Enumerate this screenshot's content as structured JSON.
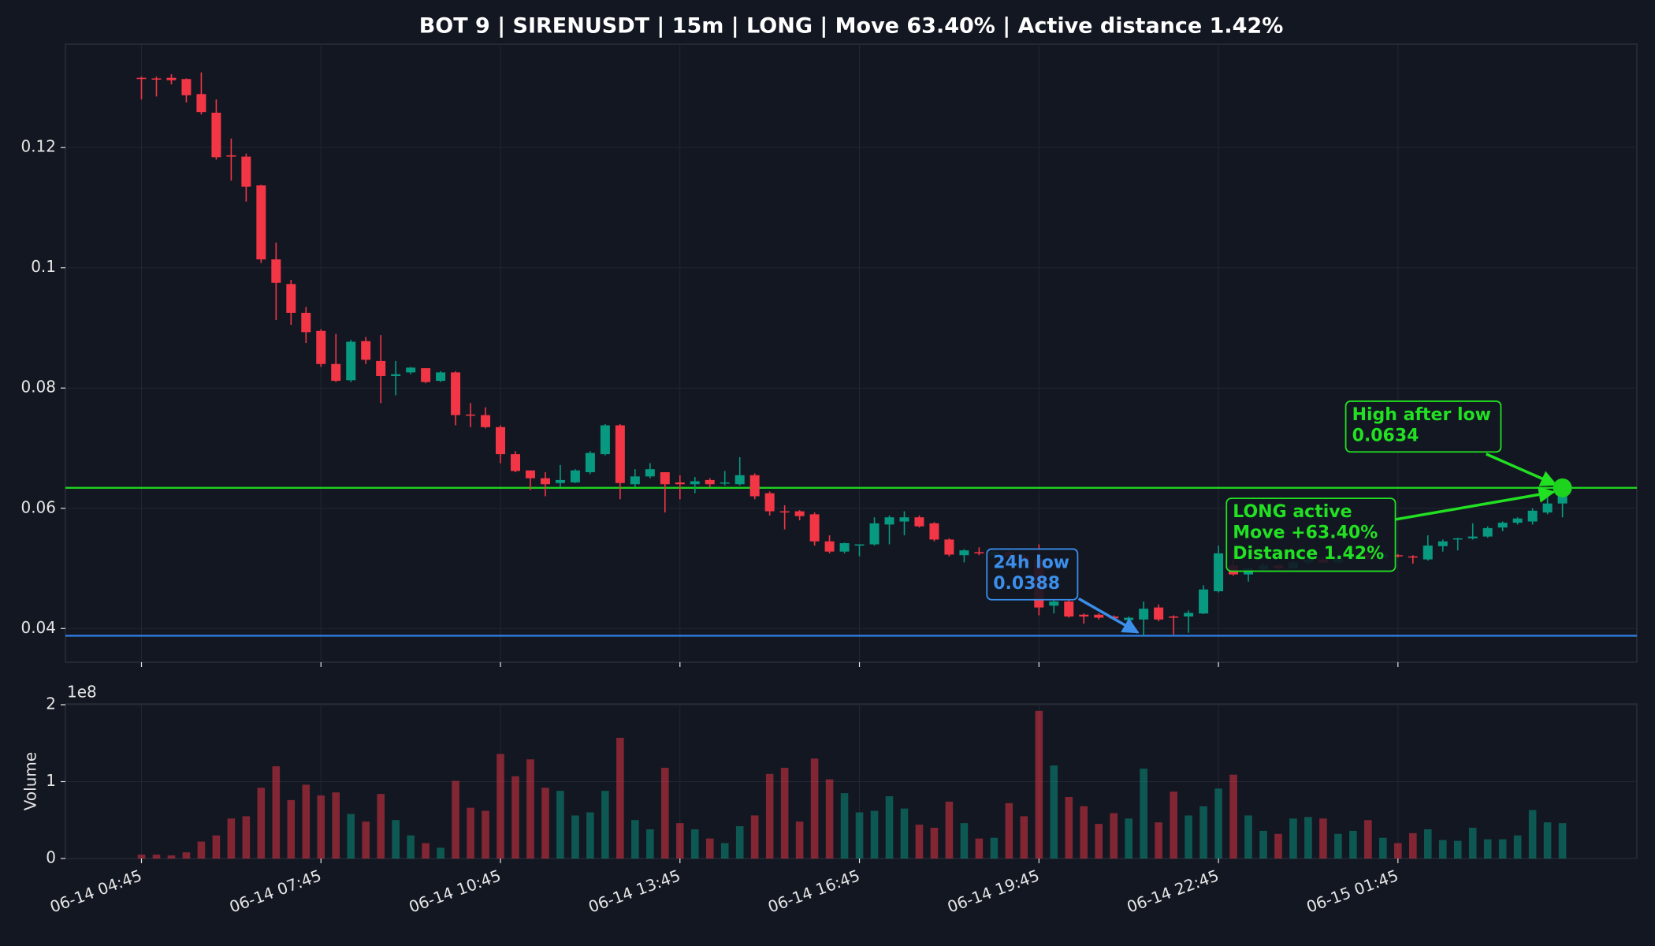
{
  "chart_data": {
    "type": "candlestick",
    "title": "BOT 9 | SIRENUSDT | 15m | LONG | Move 63.40% | Active distance 1.42%",
    "categories": [
      "06-14 04:45",
      null,
      null,
      null,
      null,
      null,
      null,
      null,
      null,
      null,
      null,
      null,
      "06-14 07:45",
      null,
      null,
      null,
      null,
      null,
      null,
      null,
      null,
      null,
      null,
      null,
      "06-14 10:45",
      null,
      null,
      null,
      null,
      null,
      null,
      null,
      null,
      null,
      null,
      null,
      "06-14 13:45",
      null,
      null,
      null,
      null,
      null,
      null,
      null,
      null,
      null,
      null,
      null,
      "06-14 16:45",
      null,
      null,
      null,
      null,
      null,
      null,
      null,
      null,
      null,
      null,
      null,
      "06-14 19:45",
      null,
      null,
      null,
      null,
      null,
      null,
      null,
      null,
      null,
      null,
      null,
      "06-14 22:45",
      null,
      null,
      null,
      null,
      null,
      null,
      null,
      null,
      null,
      null,
      null,
      "06-15 01:45",
      null,
      null,
      null,
      null,
      null,
      null,
      null,
      null,
      null,
      null,
      null
    ],
    "open": [
      0.1316,
      0.1315,
      0.1316,
      0.1314,
      0.1289,
      0.1258,
      0.1187,
      0.1185,
      0.1137,
      0.1014,
      0.0973,
      0.0925,
      0.0895,
      0.084,
      0.0813,
      0.0878,
      0.0845,
      0.082,
      0.0826,
      0.0833,
      0.0812,
      0.0826,
      0.0756,
      0.0755,
      0.0735,
      0.069,
      0.0663,
      0.065,
      0.0642,
      0.0643,
      0.066,
      0.069,
      0.0738,
      0.064,
      0.0653,
      0.066,
      0.0643,
      0.064,
      0.0647,
      0.0641,
      0.064,
      0.0655,
      0.0625,
      0.0595,
      0.0595,
      0.059,
      0.0545,
      0.0528,
      0.0538,
      0.054,
      0.0573,
      0.0578,
      0.0585,
      0.0575,
      0.0548,
      0.0522,
      0.0527,
      0.0522,
      0.0527,
      0.052,
      0.0515,
      0.0438,
      0.0445,
      0.0423,
      0.0423,
      0.042,
      0.0414,
      0.0415,
      0.0435,
      0.042,
      0.042,
      0.0425,
      0.0462,
      0.0505,
      0.049,
      0.0498,
      0.0505,
      0.05,
      0.051,
      0.0515,
      0.051,
      0.0518,
      0.0522,
      0.0518,
      0.0522,
      0.052,
      0.0515,
      0.0537,
      0.0548,
      0.055,
      0.0553,
      0.0568,
      0.0576,
      0.0578,
      0.0593,
      0.0608
    ],
    "high": [
      0.1318,
      0.1318,
      0.1322,
      0.1315,
      0.1325,
      0.128,
      0.1215,
      0.119,
      0.1138,
      0.1042,
      0.098,
      0.0935,
      0.0898,
      0.089,
      0.088,
      0.0885,
      0.0888,
      0.0845,
      0.0835,
      0.0833,
      0.0828,
      0.0828,
      0.0775,
      0.0768,
      0.0738,
      0.0695,
      0.0663,
      0.066,
      0.0672,
      0.0665,
      0.0695,
      0.074,
      0.074,
      0.0665,
      0.0675,
      0.066,
      0.0655,
      0.0652,
      0.065,
      0.0662,
      0.0685,
      0.0658,
      0.0628,
      0.0605,
      0.0597,
      0.0593,
      0.0555,
      0.0543,
      0.054,
      0.0585,
      0.0588,
      0.0595,
      0.0588,
      0.0577,
      0.055,
      0.0532,
      0.0535,
      0.053,
      0.0532,
      0.0525,
      0.054,
      0.0448,
      0.0448,
      0.0425,
      0.0425,
      0.0422,
      0.042,
      0.0445,
      0.044,
      0.0422,
      0.043,
      0.0472,
      0.0538,
      0.053,
      0.0502,
      0.0508,
      0.0508,
      0.0512,
      0.0518,
      0.0518,
      0.052,
      0.0525,
      0.0525,
      0.0526,
      0.0524,
      0.0522,
      0.0555,
      0.0548,
      0.0551,
      0.0575,
      0.057,
      0.0578,
      0.0585,
      0.06,
      0.0622,
      0.0634
    ],
    "low": [
      0.128,
      0.1285,
      0.1305,
      0.1275,
      0.1255,
      0.118,
      0.1145,
      0.111,
      0.1008,
      0.0913,
      0.0905,
      0.0875,
      0.0835,
      0.081,
      0.081,
      0.084,
      0.0775,
      0.0788,
      0.0823,
      0.0808,
      0.081,
      0.0738,
      0.0735,
      0.0733,
      0.0675,
      0.066,
      0.063,
      0.062,
      0.0635,
      0.0642,
      0.0657,
      0.0688,
      0.0615,
      0.0635,
      0.065,
      0.0593,
      0.0615,
      0.0625,
      0.0635,
      0.0638,
      0.0638,
      0.0615,
      0.0588,
      0.0565,
      0.058,
      0.0538,
      0.0525,
      0.0525,
      0.052,
      0.0538,
      0.054,
      0.0555,
      0.0568,
      0.0545,
      0.052,
      0.051,
      0.0522,
      0.0518,
      0.0515,
      0.0505,
      0.0422,
      0.0425,
      0.0418,
      0.0408,
      0.0415,
      0.0414,
      0.041,
      0.0388,
      0.0412,
      0.039,
      0.0393,
      0.0424,
      0.046,
      0.0488,
      0.0478,
      0.0495,
      0.0498,
      0.0498,
      0.0505,
      0.0508,
      0.0508,
      0.0515,
      0.0515,
      0.0516,
      0.0518,
      0.0508,
      0.0513,
      0.0528,
      0.053,
      0.0548,
      0.0551,
      0.0562,
      0.0573,
      0.0573,
      0.059,
      0.0585
    ],
    "close": [
      0.1314,
      0.1313,
      0.1312,
      0.1287,
      0.1259,
      0.1184,
      0.1185,
      0.1135,
      0.1014,
      0.0975,
      0.0925,
      0.0893,
      0.084,
      0.0812,
      0.0877,
      0.0847,
      0.082,
      0.0823,
      0.0834,
      0.081,
      0.0826,
      0.0755,
      0.0754,
      0.0735,
      0.069,
      0.0662,
      0.065,
      0.064,
      0.0647,
      0.0663,
      0.0692,
      0.0738,
      0.0642,
      0.0653,
      0.0665,
      0.064,
      0.064,
      0.0645,
      0.064,
      0.0643,
      0.0655,
      0.062,
      0.0595,
      0.0593,
      0.0587,
      0.0545,
      0.0528,
      0.0542,
      0.054,
      0.0575,
      0.0585,
      0.0585,
      0.057,
      0.0548,
      0.0523,
      0.053,
      0.0525,
      0.0527,
      0.052,
      0.051,
      0.0435,
      0.0445,
      0.042,
      0.042,
      0.0418,
      0.0417,
      0.0418,
      0.0433,
      0.0415,
      0.0418,
      0.0426,
      0.0465,
      0.0525,
      0.049,
      0.05,
      0.0505,
      0.05,
      0.051,
      0.0515,
      0.051,
      0.0518,
      0.0522,
      0.0518,
      0.0523,
      0.052,
      0.0518,
      0.0538,
      0.0545,
      0.055,
      0.0553,
      0.0567,
      0.0576,
      0.0583,
      0.0596,
      0.0608,
      0.0625
    ],
    "ylim": [
      0.0344,
      0.1372
    ],
    "yticks": [
      0.04,
      0.06,
      0.08,
      0.1,
      0.12
    ],
    "up_color": "#089981",
    "down_color": "#f23645",
    "grid": true,
    "hlines": [
      {
        "value": 0.0634,
        "color": "#1ed31e"
      },
      {
        "value": 0.0388,
        "color": "#2f7de1"
      }
    ],
    "annotations": [
      {
        "lines": [
          "24h low",
          "0.0388"
        ],
        "color": "#3b8eea"
      },
      {
        "lines": [
          "High after low",
          "0.0634"
        ],
        "color": "#22e022"
      },
      {
        "lines": [
          "LONG active",
          "Move +63.40%",
          "Distance 1.42%"
        ],
        "color": "#22e022"
      }
    ],
    "volume": {
      "values": [
        0.05,
        0.05,
        0.04,
        0.08,
        0.22,
        0.3,
        0.52,
        0.55,
        0.92,
        1.2,
        0.76,
        0.96,
        0.82,
        0.86,
        0.58,
        0.48,
        0.84,
        0.5,
        0.3,
        0.2,
        0.14,
        1.01,
        0.66,
        0.62,
        1.36,
        1.07,
        1.29,
        0.92,
        0.88,
        0.56,
        0.6,
        0.88,
        1.57,
        0.5,
        0.38,
        1.18,
        0.46,
        0.38,
        0.26,
        0.2,
        0.42,
        0.56,
        1.1,
        1.18,
        0.48,
        1.3,
        1.03,
        0.85,
        0.6,
        0.62,
        0.81,
        0.65,
        0.44,
        0.4,
        0.74,
        0.46,
        0.26,
        0.27,
        0.72,
        0.55,
        1.92,
        1.21,
        0.8,
        0.68,
        0.45,
        0.59,
        0.52,
        1.17,
        0.47,
        0.87,
        0.56,
        0.68,
        0.91,
        1.09,
        0.56,
        0.36,
        0.32,
        0.52,
        0.54,
        0.52,
        0.32,
        0.36,
        0.5,
        0.27,
        0.2,
        0.33,
        0.38,
        0.24,
        0.23,
        0.4,
        0.25,
        0.25,
        0.3,
        0.63,
        0.47,
        0.46
      ],
      "ylim": [
        0,
        2.01
      ],
      "yticks": [
        0,
        1,
        2
      ],
      "ylabel": "Volume",
      "offset_label": "1e8"
    }
  }
}
